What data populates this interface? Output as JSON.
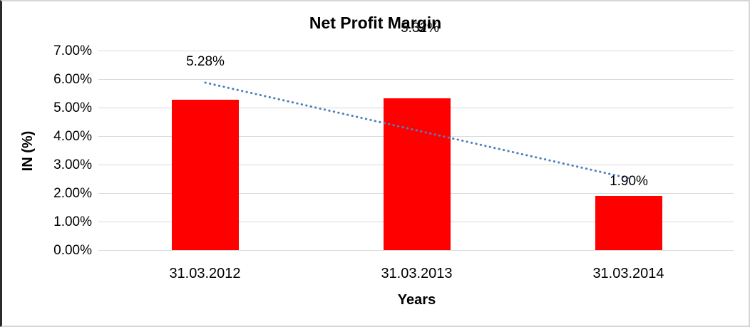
{
  "chart_data": {
    "type": "bar",
    "title": "Net Profit Margin",
    "xlabel": "Years",
    "ylabel": "IN (%)",
    "categories": [
      "31.03.2012",
      "31.03.2013",
      "31.03.2014"
    ],
    "series": [
      {
        "name": "Net Profit Margin",
        "values": [
          5.28,
          5.32,
          1.9
        ]
      }
    ],
    "data_labels": [
      "5.28%",
      "5.32%",
      "1.90%"
    ],
    "ytick_labels": [
      "0.00%",
      "1.00%",
      "2.00%",
      "3.00%",
      "4.00%",
      "5.00%",
      "6.00%",
      "7.00%"
    ],
    "ylim": [
      0,
      7
    ],
    "ytick_step": 1,
    "grid": true,
    "legend": "none",
    "bar_color": "#ff0000",
    "gridline_color": "#d9d9d9",
    "text_color": "#000000",
    "trendline": {
      "style": "dotted",
      "color": "#4f81bd",
      "start_value": 5.87,
      "end_value": 2.51
    }
  }
}
